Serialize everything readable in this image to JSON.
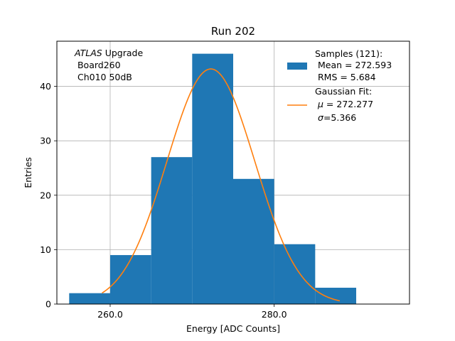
{
  "chart_data": {
    "type": "histogram",
    "title": "Run 202",
    "xlabel": "Energy [ADC Counts]",
    "ylabel": "Entries",
    "xlim": [
      253.5,
      296.5
    ],
    "ylim": [
      0,
      48.3
    ],
    "grid": true,
    "x_ticks": [
      260,
      280
    ],
    "x_tick_labels": [
      "260.0",
      "280.0"
    ],
    "y_ticks": [
      0,
      10,
      20,
      30,
      40
    ],
    "y_tick_labels": [
      "0",
      "10",
      "20",
      "30",
      "40"
    ],
    "bins": [
      {
        "x0": 255,
        "x1": 260,
        "count": 2
      },
      {
        "x0": 260,
        "x1": 265,
        "count": 9
      },
      {
        "x0": 265,
        "x1": 270,
        "count": 27
      },
      {
        "x0": 270,
        "x1": 275,
        "count": 46
      },
      {
        "x0": 275,
        "x1": 280,
        "count": 23
      },
      {
        "x0": 280,
        "x1": 285,
        "count": 11
      },
      {
        "x0": 285,
        "x1": 290,
        "count": 3
      }
    ],
    "bar_color": "#1f77b4",
    "fit": {
      "type": "gaussian",
      "mu": 272.277,
      "sigma": 5.366,
      "amplitude": 43.2,
      "x_range": [
        259,
        288
      ],
      "color": "#ff7f0e"
    },
    "annotation": {
      "line1_italic": "ATLAS",
      "line1_rest": " Upgrade",
      "line2": " Board260",
      "line3": " Ch010 50dB"
    },
    "legend": {
      "position": "top-right",
      "samples_line1": "Samples (121):",
      "samples_line2": " Mean = 272.593",
      "samples_line3": " RMS = 5.684",
      "fit_line1": "Gaussian Fit:",
      "fit_line2_symbol": "μ",
      "fit_line2_rest": " = 272.277",
      "fit_line3_symbol": "σ",
      "fit_line3_rest": "=5.366"
    }
  }
}
